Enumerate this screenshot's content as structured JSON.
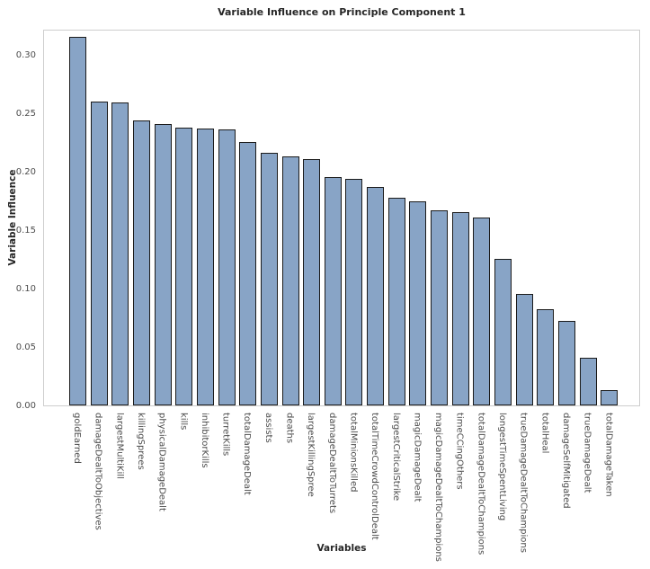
{
  "chart_data": {
    "type": "bar",
    "title": "Variable Influence on Principle Component 1",
    "xlabel": "Variables",
    "ylabel": "Variable Influence",
    "categories": [
      "goldEarned",
      "damageDealtToObjectives",
      "largestMultiKill",
      "killingSprees",
      "physicalDamageDealt",
      "kills",
      "inhibitorKills",
      "turretKills",
      "totalDamageDealt",
      "assists",
      "deaths",
      "largestKillingSpree",
      "damageDealtToTurrets",
      "totalMinionsKilled",
      "totalTimeCrowdControlDealt",
      "largestCriticalStrike",
      "magicDamageDealt",
      "magicDamageDealtToChampions",
      "timeCCingOthers",
      "totalDamageDealtToChampions",
      "longestTimeSpentLiving",
      "trueDamageDealtToChampions",
      "totalHeal",
      "damageSelfMitigated",
      "trueDamageDealt",
      "totalDamageTaken"
    ],
    "values": [
      0.315,
      0.26,
      0.259,
      0.244,
      0.241,
      0.238,
      0.237,
      0.236,
      0.225,
      0.216,
      0.213,
      0.211,
      0.195,
      0.194,
      0.187,
      0.178,
      0.175,
      0.167,
      0.165,
      0.161,
      0.125,
      0.095,
      0.082,
      0.072,
      0.041,
      0.013
    ],
    "y_ticks": [
      "0.00",
      "0.05",
      "0.10",
      "0.15",
      "0.20",
      "0.25",
      "0.30"
    ],
    "ylim": [
      0,
      0.322
    ],
    "grid": false,
    "legend": "none",
    "bar_fill_color": "#88a4c6",
    "bar_edge_color": "#1b1b1b",
    "spine_color": "#cdcdcd",
    "tick_text_color": "#4d4d4d",
    "label_text_color": "#262626"
  }
}
